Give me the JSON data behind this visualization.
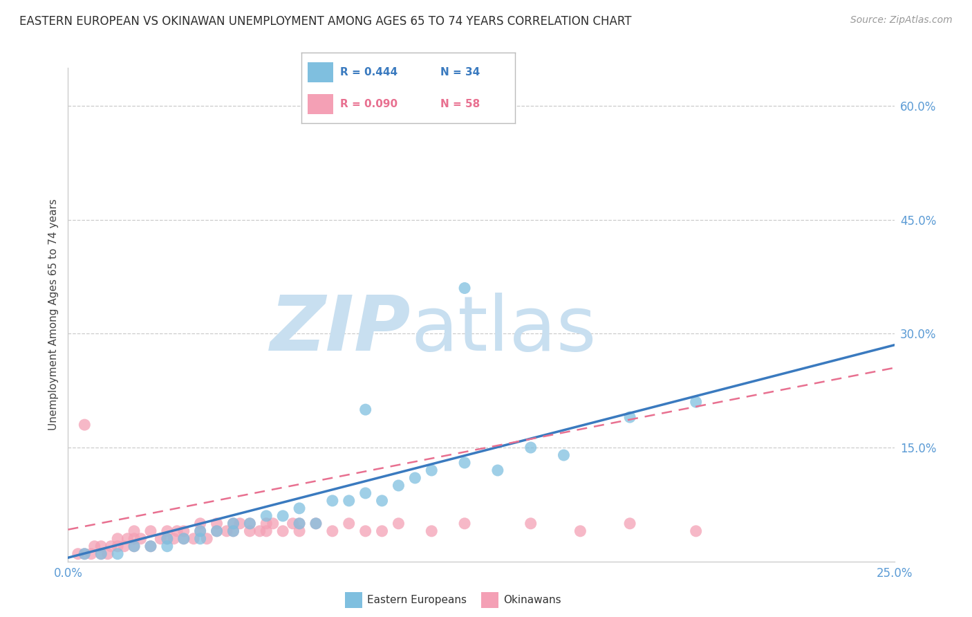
{
  "title": "EASTERN EUROPEAN VS OKINAWAN UNEMPLOYMENT AMONG AGES 65 TO 74 YEARS CORRELATION CHART",
  "source": "Source: ZipAtlas.com",
  "ylabel": "Unemployment Among Ages 65 to 74 years",
  "xlim": [
    0.0,
    0.25
  ],
  "ylim": [
    0.0,
    0.65
  ],
  "xtick_positions": [
    0.0,
    0.25
  ],
  "xtick_labels": [
    "0.0%",
    "25.0%"
  ],
  "ytick_positions": [
    0.15,
    0.3,
    0.45,
    0.6
  ],
  "ytick_labels": [
    "15.0%",
    "30.0%",
    "45.0%",
    "60.0%"
  ],
  "blue_R": 0.444,
  "blue_N": 34,
  "pink_R": 0.09,
  "pink_N": 58,
  "blue_scatter_color": "#7fbfdf",
  "pink_scatter_color": "#f4a0b5",
  "blue_line_color": "#3a7abf",
  "pink_line_color": "#e87090",
  "axis_tick_color": "#5b9bd5",
  "grid_color": "#cccccc",
  "background_color": "#ffffff",
  "title_color": "#2f2f2f",
  "source_color": "#999999",
  "watermark_zip_color": "#c8dff0",
  "watermark_atlas_color": "#c8dff0",
  "legend_label_blue": "Eastern Europeans",
  "legend_label_pink": "Okinawans",
  "blue_scatter_x": [
    0.005,
    0.01,
    0.015,
    0.02,
    0.025,
    0.03,
    0.03,
    0.035,
    0.04,
    0.04,
    0.045,
    0.05,
    0.05,
    0.055,
    0.06,
    0.065,
    0.07,
    0.07,
    0.075,
    0.08,
    0.085,
    0.09,
    0.095,
    0.1,
    0.105,
    0.11,
    0.12,
    0.13,
    0.14,
    0.15,
    0.17,
    0.19,
    0.09,
    0.12
  ],
  "blue_scatter_y": [
    0.01,
    0.01,
    0.01,
    0.02,
    0.02,
    0.02,
    0.03,
    0.03,
    0.03,
    0.04,
    0.04,
    0.04,
    0.05,
    0.05,
    0.06,
    0.06,
    0.07,
    0.05,
    0.05,
    0.08,
    0.08,
    0.09,
    0.08,
    0.1,
    0.11,
    0.12,
    0.13,
    0.12,
    0.15,
    0.14,
    0.19,
    0.21,
    0.2,
    0.36
  ],
  "pink_scatter_x": [
    0.003,
    0.005,
    0.007,
    0.008,
    0.01,
    0.01,
    0.012,
    0.013,
    0.015,
    0.015,
    0.017,
    0.018,
    0.02,
    0.02,
    0.02,
    0.022,
    0.025,
    0.025,
    0.028,
    0.03,
    0.03,
    0.032,
    0.033,
    0.035,
    0.035,
    0.038,
    0.04,
    0.04,
    0.042,
    0.045,
    0.045,
    0.048,
    0.05,
    0.05,
    0.052,
    0.055,
    0.055,
    0.058,
    0.06,
    0.06,
    0.062,
    0.065,
    0.068,
    0.07,
    0.07,
    0.075,
    0.08,
    0.085,
    0.09,
    0.095,
    0.1,
    0.11,
    0.12,
    0.14,
    0.155,
    0.17,
    0.19,
    0.005
  ],
  "pink_scatter_y": [
    0.01,
    0.01,
    0.01,
    0.02,
    0.01,
    0.02,
    0.01,
    0.02,
    0.03,
    0.02,
    0.02,
    0.03,
    0.02,
    0.03,
    0.04,
    0.03,
    0.04,
    0.02,
    0.03,
    0.03,
    0.04,
    0.03,
    0.04,
    0.03,
    0.04,
    0.03,
    0.04,
    0.05,
    0.03,
    0.04,
    0.05,
    0.04,
    0.05,
    0.04,
    0.05,
    0.04,
    0.05,
    0.04,
    0.05,
    0.04,
    0.05,
    0.04,
    0.05,
    0.05,
    0.04,
    0.05,
    0.04,
    0.05,
    0.04,
    0.04,
    0.05,
    0.04,
    0.05,
    0.05,
    0.04,
    0.05,
    0.04,
    0.18
  ],
  "blue_line_x0": 0.0,
  "blue_line_y0": 0.005,
  "blue_line_x1": 0.25,
  "blue_line_y1": 0.285,
  "pink_line_x0": 0.0,
  "pink_line_y0": 0.042,
  "pink_line_x1": 0.25,
  "pink_line_y1": 0.255
}
